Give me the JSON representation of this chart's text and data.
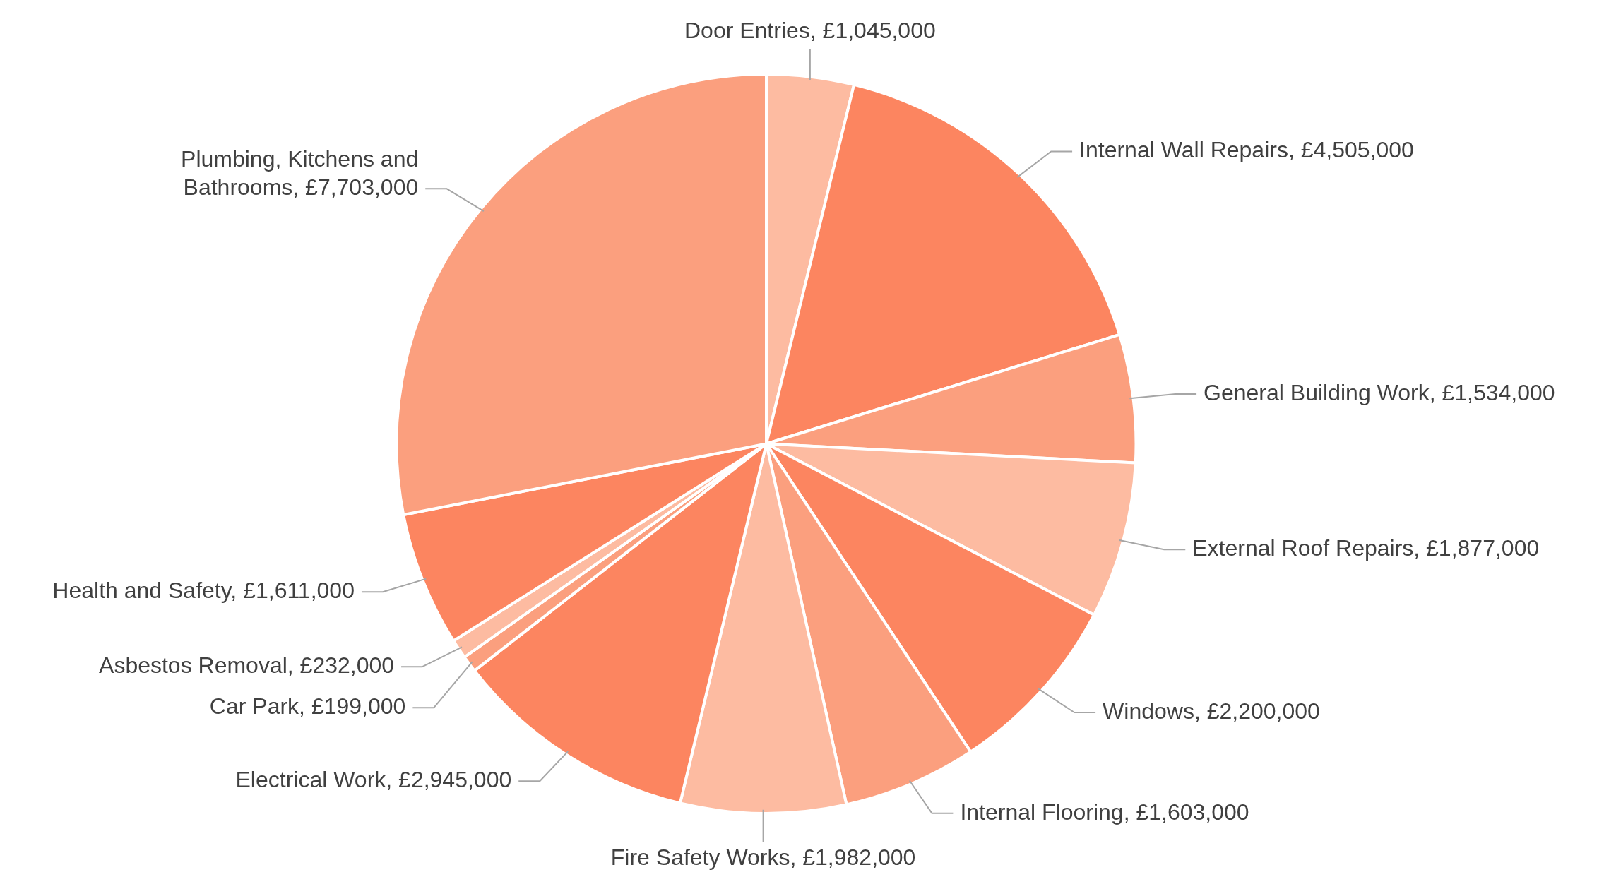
{
  "chart_data": {
    "type": "pie",
    "categories": [
      "Door Entries",
      "Internal Wall Repairs",
      "General Building Work",
      "External Roof Repairs",
      "Windows",
      "Internal Flooring",
      "Fire Safety Works",
      "Electrical Work",
      "Car Park",
      "Asbestos Removal",
      "Health and Safety",
      "Plumbing, Kitchens and Bathrooms"
    ],
    "values": [
      1045000,
      4505000,
      1534000,
      1877000,
      2200000,
      1603000,
      1982000,
      2945000,
      199000,
      232000,
      1611000,
      7703000
    ],
    "value_labels": [
      "£1,045,000",
      "£4,505,000",
      "£1,534,000",
      "£1,877,000",
      "£2,200,000",
      "£1,603,000",
      "£1,982,000",
      "£2,945,000",
      "£199,000",
      "£232,000",
      "£1,611,000",
      "£7,703,000"
    ],
    "colors": [
      "#fdbba1",
      "#fc8560",
      "#fb9f7e",
      "#fdbba1",
      "#fc8560",
      "#fb9f7e",
      "#fdbba1",
      "#fc8560",
      "#fb9f7e",
      "#fdbba1",
      "#fc8560",
      "#fb9f7e"
    ],
    "legend": false
  }
}
